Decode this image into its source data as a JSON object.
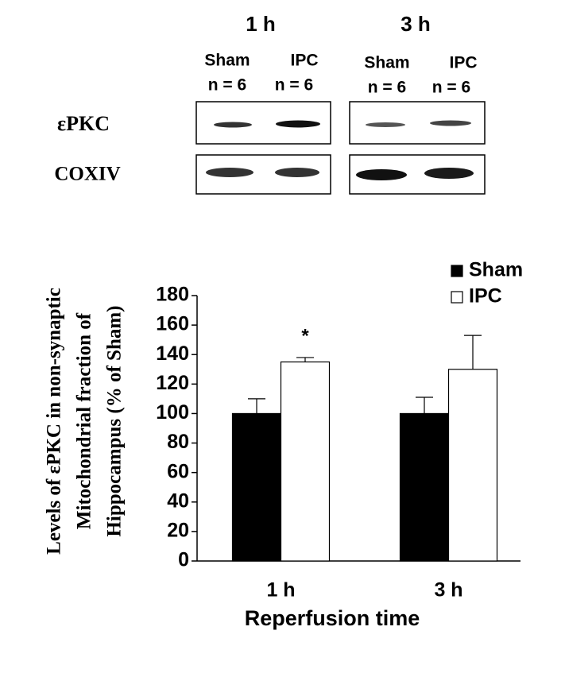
{
  "blot": {
    "timepoints": [
      {
        "label": "1 h",
        "groups": [
          {
            "name": "Sham",
            "n": "n = 6"
          },
          {
            "name": "IPC",
            "n": "n = 6"
          }
        ]
      },
      {
        "label": "3 h",
        "groups": [
          {
            "name": "Sham",
            "n": "n = 6"
          },
          {
            "name": "IPC",
            "n": "n = 6"
          }
        ]
      }
    ],
    "rows": [
      "εPKC",
      "COXIV"
    ]
  },
  "chart_data": {
    "type": "bar",
    "ylabel": [
      "Levels of εPKC in non-synaptic",
      "Mitochondrial fraction of",
      "Hippocampus (% of Sham)"
    ],
    "xlabel": "Reperfusion time",
    "categories": [
      "1 h",
      "3 h"
    ],
    "series": [
      {
        "name": "Sham",
        "color": "#000000",
        "values": [
          100,
          100
        ],
        "errors": [
          10,
          11
        ]
      },
      {
        "name": "IPC",
        "color": "#ffffff",
        "values": [
          135,
          130
        ],
        "errors": [
          3,
          23
        ]
      }
    ],
    "annotations": [
      {
        "text": "*",
        "x": "1 h",
        "series": "IPC"
      }
    ],
    "ylim": [
      0,
      180
    ],
    "yticks": [
      0,
      20,
      40,
      60,
      80,
      100,
      120,
      140,
      160,
      180
    ],
    "legend": "upper right"
  }
}
